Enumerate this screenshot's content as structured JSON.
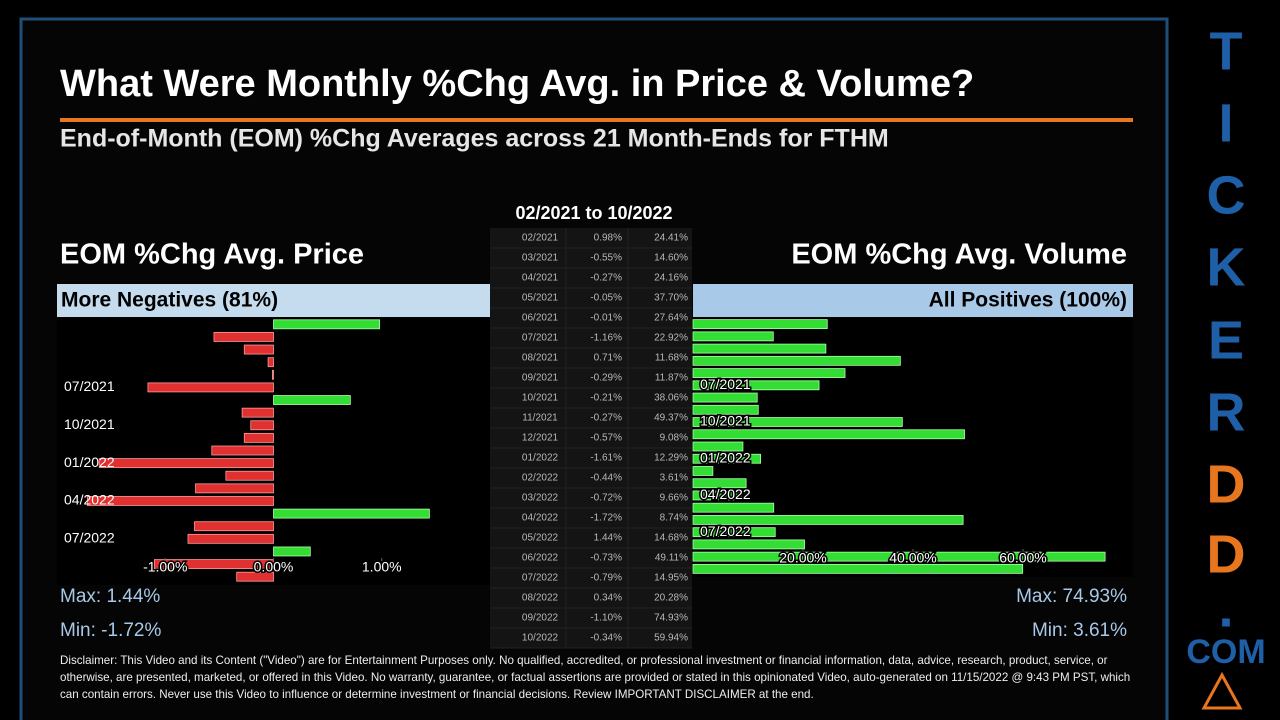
{
  "header": {
    "title": "What Were Monthly %Chg Avg. in Price & Volume?",
    "subtitle": "End-of-Month (EOM) %Chg Averages across 21 Month-Ends for FTHM"
  },
  "chart_data": [
    {
      "type": "bar",
      "orientation": "horizontal",
      "title": "EOM %Chg Avg. Price",
      "subtitle": "More Negatives (81%)",
      "categories": [
        null,
        null,
        null,
        null,
        null,
        "07/2021",
        null,
        null,
        "10/2021",
        null,
        null,
        "01/2022",
        null,
        null,
        "04/2022",
        null,
        null,
        "07/2022",
        null,
        null,
        null
      ],
      "values": [
        0.98,
        -0.55,
        -0.27,
        -0.05,
        -0.01,
        -1.16,
        0.71,
        -0.29,
        -0.21,
        -0.27,
        -0.57,
        -1.61,
        -0.44,
        -0.72,
        -1.72,
        1.44,
        -0.73,
        -0.79,
        0.34,
        -1.1,
        -0.34
      ],
      "positive_color": "#33dd33",
      "negative_color": "#e03030",
      "xlim": [
        -2,
        2
      ],
      "xticks": [
        {
          "value": -1,
          "label": "-1.00%"
        },
        {
          "value": 0,
          "label": "0.00%"
        },
        {
          "value": 1,
          "label": "1.00%"
        }
      ],
      "stats": [
        "Max: 1.44%",
        "Min: -1.72%"
      ]
    },
    {
      "type": "bar",
      "orientation": "horizontal",
      "title": "EOM %Chg Avg. Volume",
      "subtitle": "All Positives (100%)",
      "categories": [
        null,
        null,
        null,
        null,
        null,
        "07/2021",
        null,
        null,
        "10/2021",
        null,
        null,
        "01/2022",
        null,
        null,
        "04/2022",
        null,
        null,
        "07/2022",
        null,
        null,
        null
      ],
      "values": [
        24.41,
        14.6,
        24.16,
        37.7,
        27.64,
        22.92,
        11.68,
        11.87,
        38.06,
        49.37,
        9.08,
        12.29,
        3.61,
        9.66,
        8.74,
        14.68,
        49.11,
        14.95,
        20.28,
        74.93,
        59.94
      ],
      "positive_color": "#33dd33",
      "negative_color": "#e03030",
      "xlim": [
        0,
        80
      ],
      "xticks": [
        {
          "value": 20,
          "label": "20.00%"
        },
        {
          "value": 40,
          "label": "40.00%"
        },
        {
          "value": 60,
          "label": "60.00%"
        }
      ],
      "stats": [
        "Max: 74.93%",
        "Min: 3.61%"
      ]
    }
  ],
  "table": {
    "title": "02/2021 to 10/2022",
    "rows": [
      [
        "02/2021",
        "0.98%",
        "24.41%"
      ],
      [
        "03/2021",
        "-0.55%",
        "14.60%"
      ],
      [
        "04/2021",
        "-0.27%",
        "24.16%"
      ],
      [
        "05/2021",
        "-0.05%",
        "37.70%"
      ],
      [
        "06/2021",
        "-0.01%",
        "27.64%"
      ],
      [
        "07/2021",
        "-1.16%",
        "22.92%"
      ],
      [
        "08/2021",
        "0.71%",
        "11.68%"
      ],
      [
        "09/2021",
        "-0.29%",
        "11.87%"
      ],
      [
        "10/2021",
        "-0.21%",
        "38.06%"
      ],
      [
        "11/2021",
        "-0.27%",
        "49.37%"
      ],
      [
        "12/2021",
        "-0.57%",
        "9.08%"
      ],
      [
        "01/2022",
        "-1.61%",
        "12.29%"
      ],
      [
        "02/2022",
        "-0.44%",
        "3.61%"
      ],
      [
        "03/2022",
        "-0.72%",
        "9.66%"
      ],
      [
        "04/2022",
        "-1.72%",
        "8.74%"
      ],
      [
        "05/2022",
        "1.44%",
        "14.68%"
      ],
      [
        "06/2022",
        "-0.73%",
        "49.11%"
      ],
      [
        "07/2022",
        "-0.79%",
        "14.95%"
      ],
      [
        "08/2022",
        "0.34%",
        "20.28%"
      ],
      [
        "09/2022",
        "-1.10%",
        "74.93%"
      ],
      [
        "10/2022",
        "-0.34%",
        "59.94%"
      ]
    ]
  },
  "disclaimer": "Disclaimer: This Video and its Content (\"Video\") are for Entertainment Purposes only. No qualified, accredited, or professional investment or financial information, data, advice, research, product, service, or otherwise, are presented, marketed, or offered in this Video. No warranty, guarantee, or factual assertions are provided or stated in this opinionated Video, auto-generated on 11/15/2022 @ 9:43 PM PST, which can contain errors. Never use this Video to influence or determine investment or financial decisions. Review IMPORTANT DISCLAIMER at the end.",
  "brand": [
    "T",
    "I",
    "C",
    "K",
    "E",
    "R",
    "D",
    "D",
    ".",
    "COM"
  ]
}
